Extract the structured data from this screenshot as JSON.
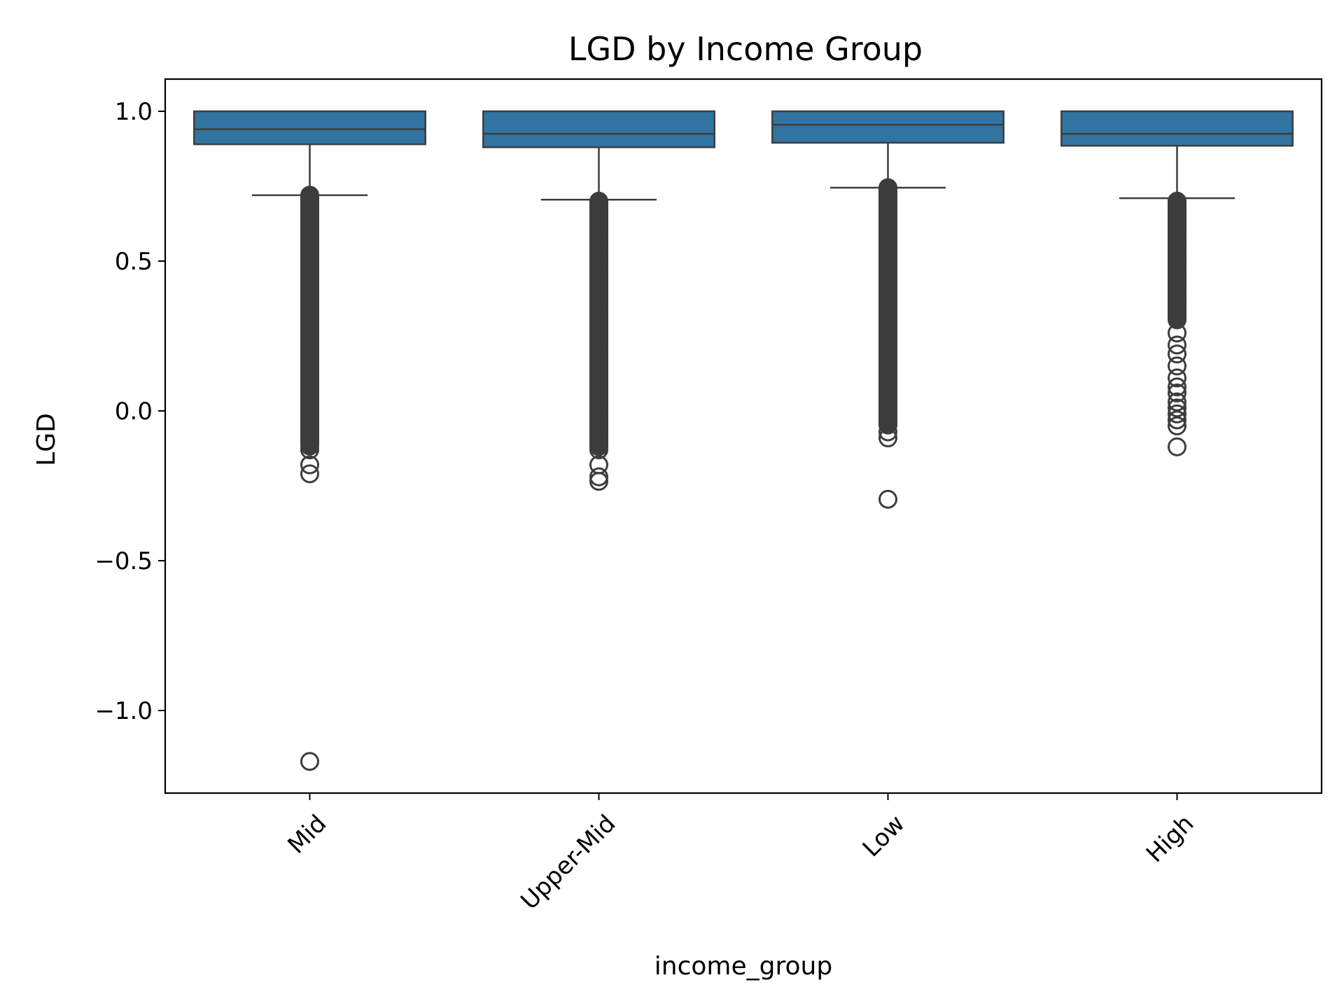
{
  "chart_data": {
    "type": "box",
    "title": "LGD by Income Group",
    "xlabel": "income_group",
    "ylabel": "LGD",
    "ylim": [
      -1.3,
      1.1
    ],
    "yticks": [
      1.0,
      0.5,
      0.0,
      -0.5,
      -1.0
    ],
    "ytick_labels": [
      "1.0",
      "0.5",
      "0.0",
      "−0.5",
      "−1.0"
    ],
    "categories": [
      "Mid",
      "Upper-Mid",
      "Low",
      "High"
    ],
    "box_color": "#3274a1",
    "line_color": "#3d3d3d",
    "grid": false,
    "boxes": [
      {
        "category": "Mid",
        "q1": 0.89,
        "median": 0.94,
        "q3": 1.0,
        "whisker_low": 0.72,
        "whisker_high": 1.0,
        "outlier_band": [
          -0.12,
          0.72
        ],
        "outliers": [
          -0.13,
          -0.18,
          -0.21,
          -1.17
        ]
      },
      {
        "category": "Upper-Mid",
        "q1": 0.88,
        "median": 0.925,
        "q3": 1.0,
        "whisker_low": 0.705,
        "whisker_high": 1.0,
        "outlier_band": [
          -0.12,
          0.7
        ],
        "outliers": [
          -0.13,
          -0.18,
          -0.22,
          -0.235
        ]
      },
      {
        "category": "Low",
        "q1": 0.895,
        "median": 0.955,
        "q3": 1.0,
        "whisker_low": 0.745,
        "whisker_high": 1.0,
        "outlier_band": [
          -0.05,
          0.745
        ],
        "outliers": [
          -0.07,
          -0.09,
          -0.295
        ]
      },
      {
        "category": "High",
        "q1": 0.885,
        "median": 0.925,
        "q3": 1.0,
        "whisker_low": 0.71,
        "whisker_high": 1.0,
        "outlier_band": [
          0.3,
          0.7
        ],
        "outliers": [
          0.26,
          0.22,
          0.19,
          0.15,
          0.11,
          0.08,
          0.06,
          0.03,
          0.01,
          -0.01,
          -0.03,
          -0.05,
          -0.12
        ]
      }
    ]
  }
}
